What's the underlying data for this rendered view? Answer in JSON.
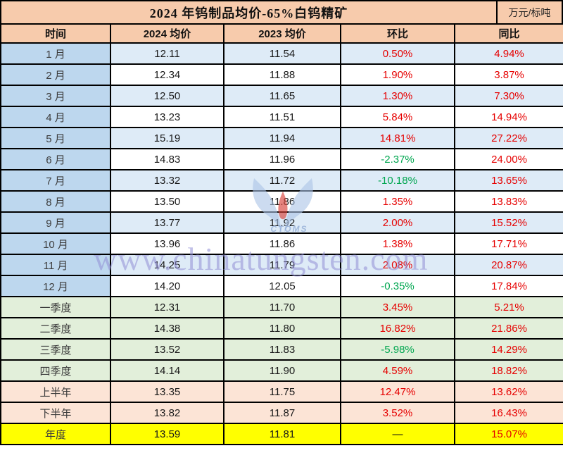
{
  "title": {
    "text": "2024 年钨制品均价-65%白钨精矿",
    "unit": "万元/标吨"
  },
  "watermark": {
    "text": "www.chinatungsten.com",
    "logo_caption": "CTOMS"
  },
  "colors": {
    "header_bg": "#f7cbac",
    "month_label_bg": "#bdd7ee",
    "stripe_blue": "#deebf7",
    "stripe_white": "#ffffff",
    "quarter_bg": "#e2efda",
    "half_bg": "#fce4d6",
    "year_bg": "#ffff00",
    "positive": "#e60000",
    "negative": "#00a650",
    "border": "#000000",
    "watermark": "#928fd6"
  },
  "chart_data": {
    "type": "table",
    "title": "2024 年钨制品均价-65%白钨精矿",
    "unit": "万元/标吨",
    "columns": [
      "时间",
      "2024 均价",
      "2023 均价",
      "环比",
      "同比"
    ],
    "rows": [
      {
        "label": "1 月",
        "price_2024": "12.11",
        "price_2023": "11.54",
        "mom": "0.50%",
        "yoy": "4.94%",
        "group": "month"
      },
      {
        "label": "2 月",
        "price_2024": "12.34",
        "price_2023": "11.88",
        "mom": "1.90%",
        "yoy": "3.87%",
        "group": "month"
      },
      {
        "label": "3 月",
        "price_2024": "12.50",
        "price_2023": "11.65",
        "mom": "1.30%",
        "yoy": "7.30%",
        "group": "month"
      },
      {
        "label": "4 月",
        "price_2024": "13.23",
        "price_2023": "11.51",
        "mom": "5.84%",
        "yoy": "14.94%",
        "group": "month"
      },
      {
        "label": "5 月",
        "price_2024": "15.19",
        "price_2023": "11.94",
        "mom": "14.81%",
        "yoy": "27.22%",
        "group": "month"
      },
      {
        "label": "6 月",
        "price_2024": "14.83",
        "price_2023": "11.96",
        "mom": "-2.37%",
        "yoy": "24.00%",
        "group": "month"
      },
      {
        "label": "7 月",
        "price_2024": "13.32",
        "price_2023": "11.72",
        "mom": "-10.18%",
        "yoy": "13.65%",
        "group": "month"
      },
      {
        "label": "8 月",
        "price_2024": "13.50",
        "price_2023": "11.86",
        "mom": "1.35%",
        "yoy": "13.83%",
        "group": "month"
      },
      {
        "label": "9 月",
        "price_2024": "13.77",
        "price_2023": "11.92",
        "mom": "2.00%",
        "yoy": "15.52%",
        "group": "month"
      },
      {
        "label": "10 月",
        "price_2024": "13.96",
        "price_2023": "11.86",
        "mom": "1.38%",
        "yoy": "17.71%",
        "group": "month"
      },
      {
        "label": "11 月",
        "price_2024": "14.25",
        "price_2023": "11.79",
        "mom": "2.08%",
        "yoy": "20.87%",
        "group": "month"
      },
      {
        "label": "12 月",
        "price_2024": "14.20",
        "price_2023": "12.05",
        "mom": "-0.35%",
        "yoy": "17.84%",
        "group": "month"
      },
      {
        "label": "一季度",
        "price_2024": "12.31",
        "price_2023": "11.70",
        "mom": "3.45%",
        "yoy": "5.21%",
        "group": "quarter"
      },
      {
        "label": "二季度",
        "price_2024": "14.38",
        "price_2023": "11.80",
        "mom": "16.82%",
        "yoy": "21.86%",
        "group": "quarter"
      },
      {
        "label": "三季度",
        "price_2024": "13.52",
        "price_2023": "11.83",
        "mom": "-5.98%",
        "yoy": "14.29%",
        "group": "quarter"
      },
      {
        "label": "四季度",
        "price_2024": "14.14",
        "price_2023": "11.90",
        "mom": "4.59%",
        "yoy": "18.82%",
        "group": "quarter"
      },
      {
        "label": "上半年",
        "price_2024": "13.35",
        "price_2023": "11.75",
        "mom": "12.47%",
        "yoy": "13.62%",
        "group": "half"
      },
      {
        "label": "下半年",
        "price_2024": "13.82",
        "price_2023": "11.87",
        "mom": "3.52%",
        "yoy": "16.43%",
        "group": "half"
      },
      {
        "label": "年度",
        "price_2024": "13.59",
        "price_2023": "11.81",
        "mom": "—",
        "yoy": "15.07%",
        "group": "year"
      }
    ]
  }
}
